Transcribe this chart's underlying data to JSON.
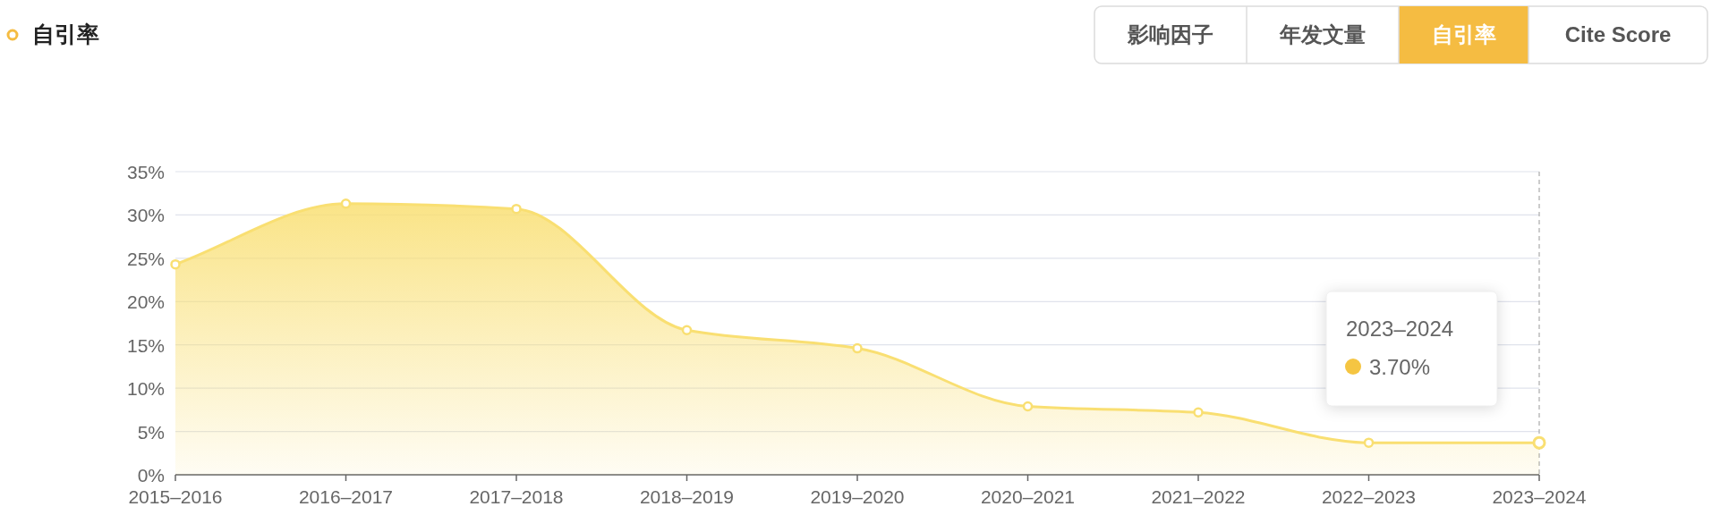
{
  "chart_data": {
    "type": "area",
    "title": "自引率",
    "annotations": [
      "影响因子",
      "年发文量",
      "自引率",
      "Cite Score",
      "2023–2024",
      "3.70%"
    ],
    "categories": [
      "2015–2016",
      "2016–2017",
      "2017–2018",
      "2018–2019",
      "2019–2020",
      "2020–2021",
      "2021–2022",
      "2022–2023",
      "2023–2024"
    ],
    "series": [
      {
        "color": "#f9df72",
        "values": [
          24.3,
          31.3,
          30.7,
          16.7,
          14.6,
          7.9,
          7.2,
          3.7,
          3.7
        ]
      }
    ],
    "ylim": [
      0,
      35
    ],
    "yticks": [
      {
        "value": 0,
        "label": "0%"
      },
      {
        "value": 5,
        "label": "5%"
      },
      {
        "value": 10,
        "label": "10%"
      },
      {
        "value": 15,
        "label": "15%"
      },
      {
        "value": 20,
        "label": "20%"
      },
      {
        "value": 25,
        "label": "25%"
      },
      {
        "value": 30,
        "label": "30%"
      },
      {
        "value": 35,
        "label": "35%"
      }
    ],
    "grid": "y",
    "marker": "circle"
  }
}
